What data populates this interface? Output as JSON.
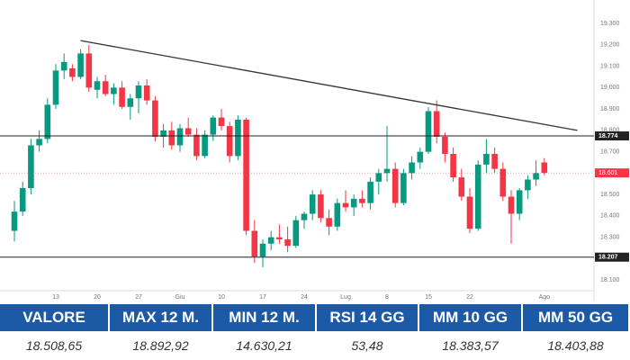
{
  "chart_data": {
    "type": "candlestick",
    "categories": [
      null,
      null,
      null,
      null,
      null,
      "13",
      null,
      null,
      null,
      null,
      "20",
      null,
      null,
      null,
      null,
      "27",
      null,
      null,
      null,
      null,
      "Giu",
      null,
      null,
      null,
      null,
      "10",
      null,
      null,
      null,
      null,
      "17",
      null,
      null,
      null,
      null,
      "24",
      null,
      null,
      null,
      null,
      "Lug",
      null,
      null,
      null,
      null,
      "8",
      null,
      null,
      null,
      null,
      "15",
      null,
      null,
      null,
      null,
      "22",
      null,
      null,
      null,
      null,
      null,
      null,
      null,
      null,
      "Ago"
    ],
    "open": [
      18330,
      18420,
      18530,
      18730,
      18760,
      18920,
      19080,
      19090,
      19050,
      19160,
      18990,
      19030,
      18970,
      19000,
      18910,
      18950,
      19010,
      18940,
      18770,
      18800,
      18730,
      18810,
      18780,
      18680,
      18780,
      18860,
      18820,
      18680,
      18850,
      18330,
      18210,
      18270,
      18300,
      18290,
      18260,
      18380,
      18410,
      18500,
      18390,
      18350,
      18460,
      18440,
      18480,
      18460,
      18560,
      18600,
      18620,
      18460,
      18600,
      18650,
      18700,
      18890,
      18770,
      18690,
      18580,
      18490,
      18340,
      18640,
      18690,
      18620,
      18490,
      18410,
      18520,
      18570,
      18650
    ],
    "high": [
      18470,
      18560,
      18760,
      18800,
      18950,
      19110,
      19160,
      19110,
      19180,
      19200,
      19050,
      19060,
      19020,
      19030,
      18970,
      19030,
      19040,
      18960,
      18830,
      18840,
      18830,
      18860,
      18810,
      18800,
      18870,
      18900,
      18840,
      18870,
      18860,
      18380,
      18290,
      18330,
      18360,
      18350,
      18400,
      18420,
      18520,
      18520,
      18430,
      18480,
      18520,
      18500,
      18520,
      18580,
      18620,
      18820,
      18650,
      18620,
      18680,
      18720,
      18910,
      18940,
      18790,
      18720,
      18620,
      18530,
      18660,
      18760,
      18720,
      18650,
      18520,
      18530,
      18590,
      18660,
      18670
    ],
    "low": [
      18280,
      18400,
      18500,
      18700,
      18740,
      18900,
      19040,
      19030,
      19040,
      18980,
      18950,
      18960,
      18920,
      18900,
      18850,
      18880,
      18920,
      18750,
      18720,
      18710,
      18700,
      18770,
      18660,
      18670,
      18750,
      18800,
      18650,
      18660,
      18310,
      18180,
      18160,
      18240,
      18270,
      18230,
      18250,
      18340,
      18380,
      18370,
      18310,
      18330,
      18420,
      18400,
      18440,
      18430,
      18500,
      18560,
      18440,
      18450,
      18570,
      18620,
      18690,
      18740,
      18650,
      18560,
      18470,
      18320,
      18330,
      18600,
      18600,
      18470,
      18270,
      18380,
      18480,
      18540,
      18590
    ],
    "close": [
      18420,
      18530,
      18730,
      18760,
      18920,
      19080,
      19120,
      19050,
      19160,
      19000,
      19030,
      18970,
      19000,
      18910,
      18950,
      19010,
      18940,
      18770,
      18800,
      18730,
      18810,
      18780,
      18680,
      18780,
      18860,
      18820,
      18680,
      18850,
      18330,
      18210,
      18270,
      18300,
      18290,
      18260,
      18380,
      18410,
      18500,
      18390,
      18350,
      18460,
      18440,
      18480,
      18460,
      18560,
      18600,
      18620,
      18460,
      18600,
      18650,
      18700,
      18890,
      18770,
      18690,
      18580,
      18490,
      18340,
      18640,
      18690,
      18620,
      18490,
      18410,
      18520,
      18570,
      18600,
      18601
    ],
    "up_color": "#089981",
    "down_color": "#f23645",
    "ylim": [
      18050,
      19330
    ],
    "yticks": [
      {
        "value": 18100,
        "label": "18.100"
      },
      {
        "value": 18200,
        "label": "18.200"
      },
      {
        "value": 18300,
        "label": "18.300"
      },
      {
        "value": 18400,
        "label": "18.400"
      },
      {
        "value": 18500,
        "label": "18.500"
      },
      {
        "value": 18600,
        "label": "18.600"
      },
      {
        "value": 18700,
        "label": "18.700"
      },
      {
        "value": 18800,
        "label": "18.800"
      },
      {
        "value": 18900,
        "label": "18.900"
      },
      {
        "value": 19000,
        "label": "19.000"
      },
      {
        "value": 19100,
        "label": "19.100"
      },
      {
        "value": 19200,
        "label": "19.200"
      },
      {
        "value": 19300,
        "label": "19.300"
      }
    ],
    "grid": false,
    "levels": [
      {
        "value": 18774,
        "label": "18.774"
      },
      {
        "value": 18207,
        "label": "18.207"
      }
    ],
    "last_price": {
      "value": 18601,
      "label": "18.601"
    },
    "trendline": {
      "from": [
        8,
        19220
      ],
      "to": [
        68,
        18800
      ],
      "color": "#333333"
    }
  },
  "stats": {
    "headers": [
      "VALORE",
      "MAX 12 M.",
      "MIN 12 M.",
      "RSI 14 GG",
      "MM 10 GG",
      "MM 50 GG"
    ],
    "values": [
      "18.508,65",
      "18.892,92",
      "14.630,21",
      "53,48",
      "18.383,57",
      "18.403,88"
    ]
  }
}
